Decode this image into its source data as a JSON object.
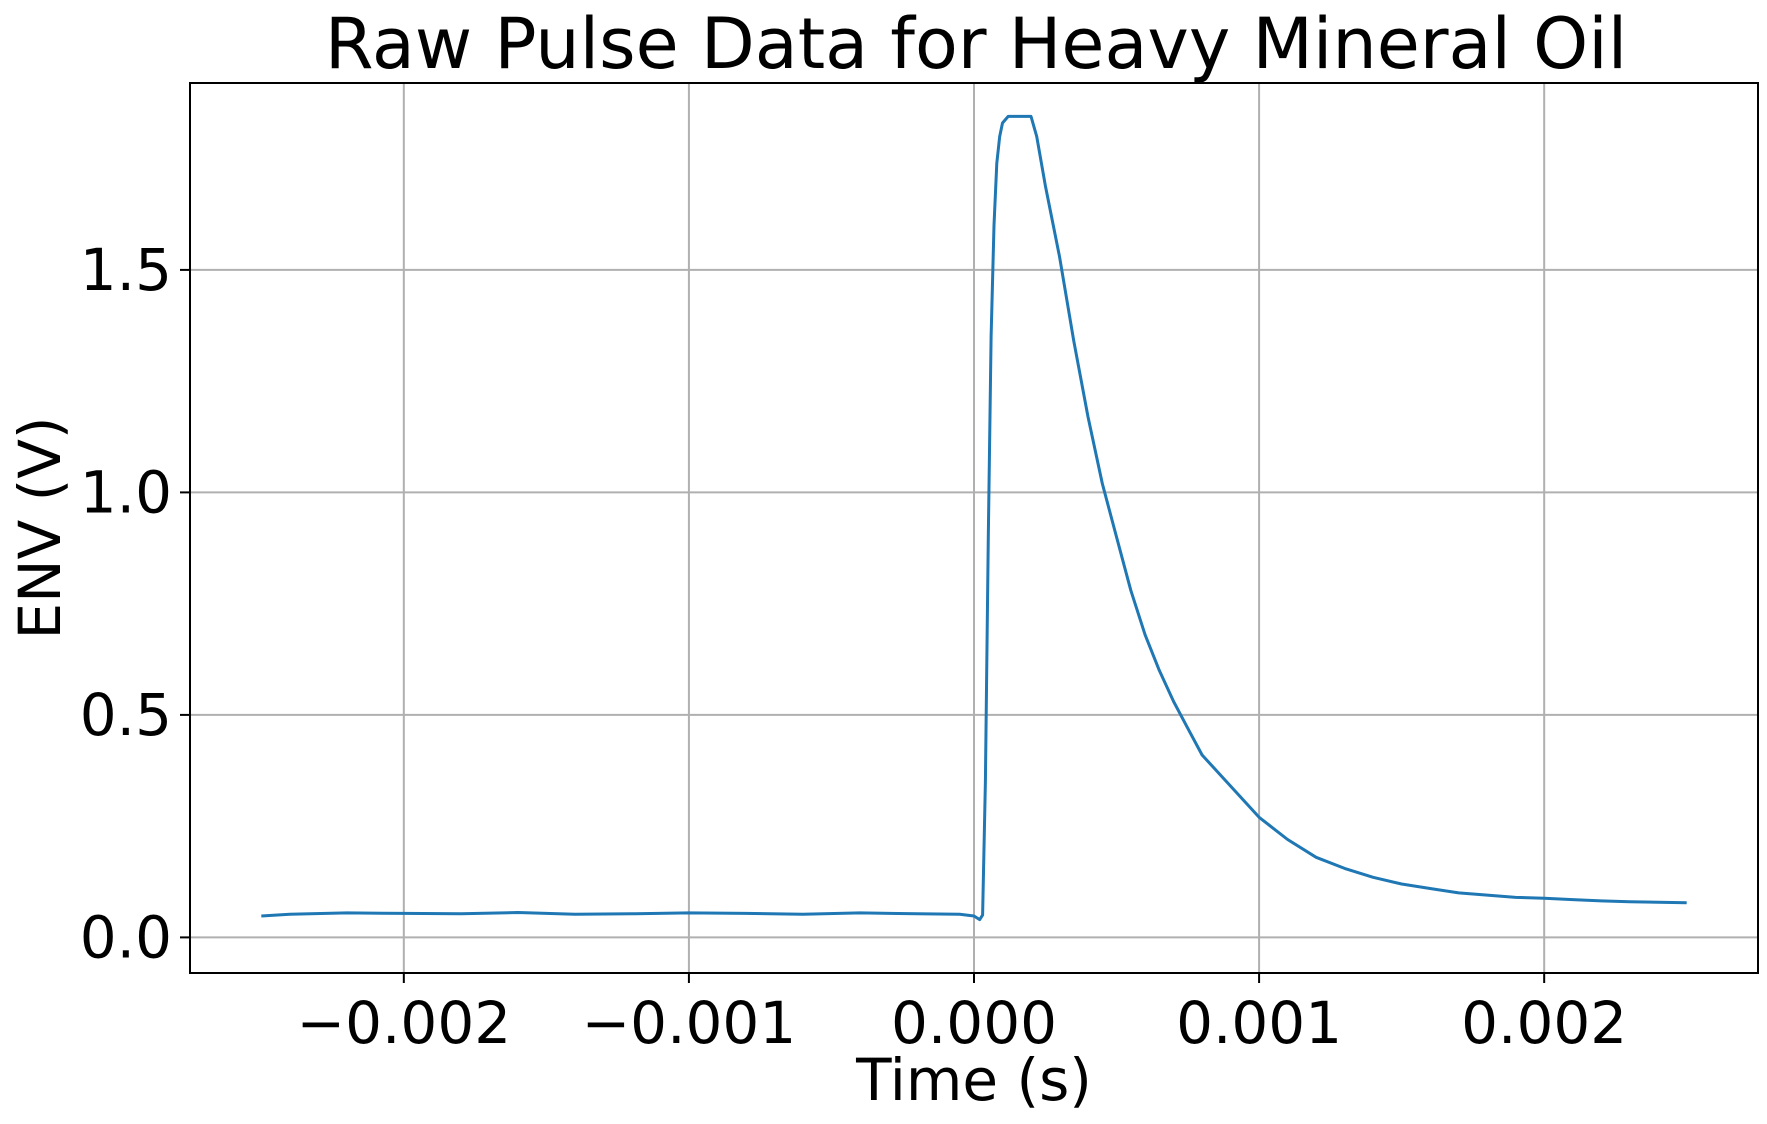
{
  "chart_data": {
    "type": "line",
    "title": "Raw Pulse Data for Heavy Mineral Oil",
    "xlabel": "Time (s)",
    "ylabel": "ENV (V)",
    "xlim": [
      -0.00275,
      0.00275
    ],
    "ylim": [
      -0.08,
      1.92
    ],
    "grid": true,
    "x_ticks": [
      -0.002,
      -0.001,
      0.0,
      0.001,
      0.002
    ],
    "x_tick_labels": [
      "−0.002",
      "−0.001",
      "0.000",
      "0.001",
      "0.002"
    ],
    "y_ticks": [
      0.0,
      0.5,
      1.0,
      1.5
    ],
    "y_tick_labels": [
      "0.0",
      "0.5",
      "1.0",
      "1.5"
    ],
    "series": [
      {
        "color": "#1f77b4",
        "x": [
          -0.0025,
          -0.0024,
          -0.0022,
          -0.002,
          -0.0018,
          -0.0016,
          -0.0014,
          -0.0012,
          -0.001,
          -0.0008,
          -0.0006,
          -0.0004,
          -0.0002,
          -5e-05,
          0.0,
          2e-05,
          3e-05,
          4e-05,
          5e-05,
          6e-05,
          7e-05,
          8e-05,
          9e-05,
          0.0001,
          0.00012,
          0.00014,
          0.00016,
          0.00018,
          0.0002,
          0.00022,
          0.00025,
          0.0003,
          0.00035,
          0.0004,
          0.00045,
          0.0005,
          0.00055,
          0.0006,
          0.00065,
          0.0007,
          0.00075,
          0.0008,
          0.0009,
          0.001,
          0.0011,
          0.0012,
          0.0013,
          0.0014,
          0.0015,
          0.0016,
          0.0017,
          0.0018,
          0.0019,
          0.002,
          0.0021,
          0.0022,
          0.0023,
          0.0024,
          0.0025
        ],
        "y": [
          0.048,
          0.052,
          0.055,
          0.054,
          0.053,
          0.056,
          0.052,
          0.053,
          0.055,
          0.054,
          0.052,
          0.055,
          0.053,
          0.052,
          0.048,
          0.04,
          0.05,
          0.35,
          0.9,
          1.35,
          1.6,
          1.74,
          1.8,
          1.83,
          1.845,
          1.845,
          1.845,
          1.845,
          1.845,
          1.8,
          1.69,
          1.53,
          1.34,
          1.17,
          1.02,
          0.9,
          0.78,
          0.68,
          0.6,
          0.53,
          0.47,
          0.41,
          0.34,
          0.27,
          0.22,
          0.18,
          0.155,
          0.135,
          0.12,
          0.11,
          0.1,
          0.095,
          0.09,
          0.088,
          0.085,
          0.082,
          0.08,
          0.079,
          0.078
        ]
      }
    ]
  }
}
